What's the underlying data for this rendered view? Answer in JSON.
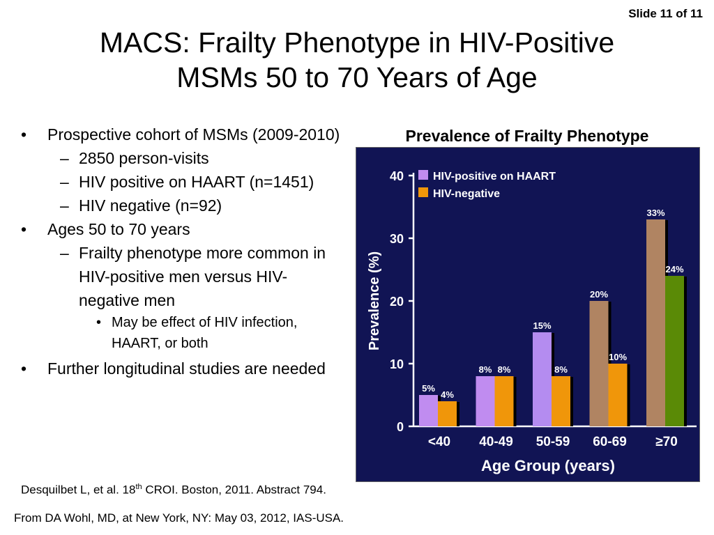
{
  "slide_number": "Slide 11 of 11",
  "title": {
    "line1": "MACS: Frailty Phenotype in HIV-Positive",
    "line2": "MSMs 50 to 70 Years of Age"
  },
  "bullets": {
    "b1": "Prospective cohort of MSMs (2009-2010)",
    "b1_sub1": "2850 person-visits",
    "b1_sub2": "HIV positive on HAART (n=1451)",
    "b1_sub3": "HIV negative (n=92)",
    "b2": "Ages 50 to 70 years",
    "b2_sub1": "Frailty phenotype more common in HIV-positive men versus HIV-negative men",
    "b2_sub1_sub1": "May be effect of HIV infection, HAART, or both",
    "b3": "Further longitudinal studies are needed"
  },
  "citation": {
    "before": "Desquilbet L, et al. 18",
    "sup": "th",
    "after": " CROI. Boston, 2011. Abstract 794."
  },
  "source": "From DA Wohl, MD, at New York, NY: May 03, 2012, IAS-USA.",
  "chart_data": {
    "type": "bar",
    "title": "Prevalence of Frailty Phenotype",
    "xlabel": "Age Group (years)",
    "ylabel": "Prevalence (%)",
    "categories": [
      "<40",
      "40-49",
      "50-59",
      "60-69",
      "≥70"
    ],
    "series": [
      {
        "name": "HIV-positive on HAART",
        "values": [
          5,
          8,
          15,
          20,
          33
        ],
        "labels": [
          "5%",
          "8%",
          "15%",
          "20%",
          "33%"
        ],
        "colors": [
          "#c08cf0",
          "#c08cf0",
          "#b48cf0",
          "#b08462",
          "#b08462"
        ]
      },
      {
        "name": "HIV-negative",
        "values": [
          4,
          8,
          8,
          10,
          24
        ],
        "labels": [
          "4%",
          "8%",
          "8%",
          "10%",
          "24%"
        ],
        "colors": [
          "#f0960a",
          "#f0960a",
          "#f0960a",
          "#f0960a",
          "#5a8a06"
        ]
      }
    ],
    "legend_colors": [
      "#c08cf0",
      "#f0960a"
    ],
    "ylim": [
      0,
      40
    ],
    "yticks": [
      0,
      10,
      20,
      30,
      40
    ],
    "legend_position": "top-left",
    "background": "#111454"
  }
}
